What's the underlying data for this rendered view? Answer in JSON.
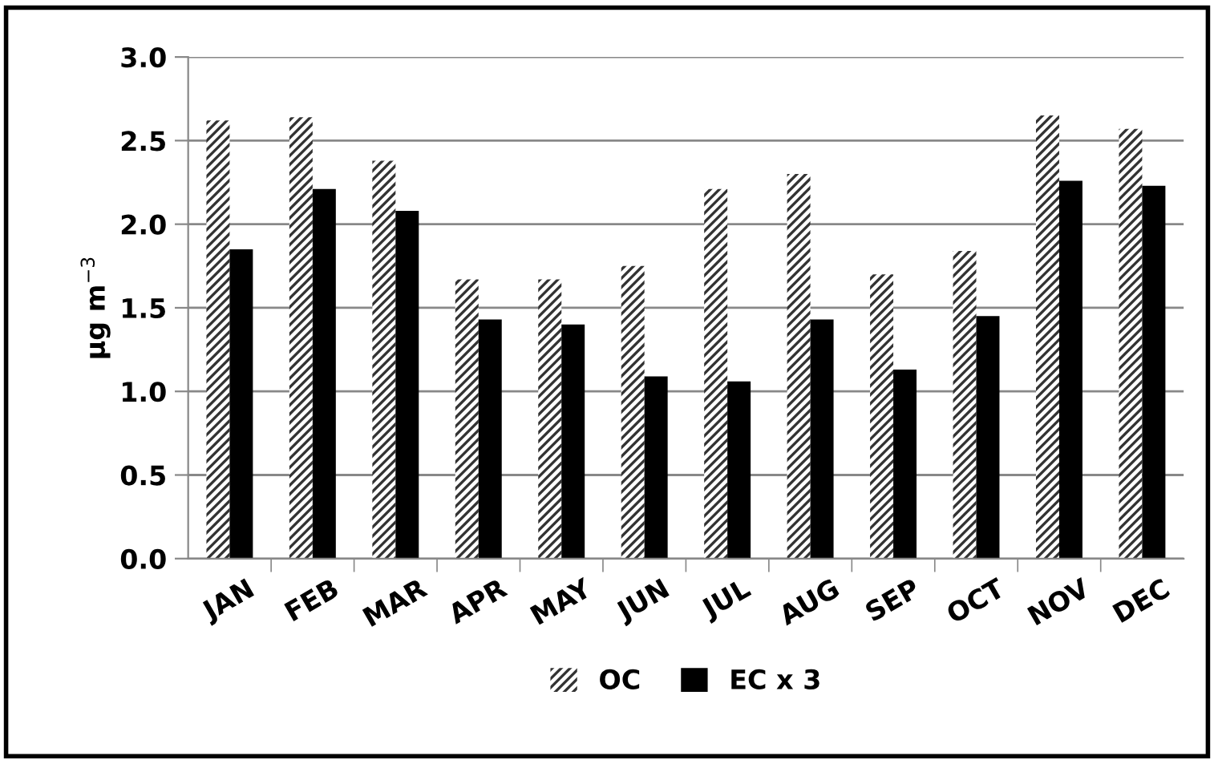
{
  "chart_data": {
    "type": "bar",
    "ylabel": "µg m$^{−3}$",
    "categories": [
      "JAN",
      "FEB",
      "MAR",
      "APR",
      "MAY",
      "JUN",
      "JUL",
      "AUG",
      "SEP",
      "OCT",
      "NOV",
      "DEC"
    ],
    "series": [
      {
        "name": "OC",
        "color": "#333333",
        "values": [
          2.62,
          2.64,
          2.38,
          1.67,
          1.67,
          1.75,
          2.21,
          2.3,
          1.7,
          1.84,
          2.65,
          2.57
        ]
      },
      {
        "name": "EC x 3",
        "color": "#000000",
        "values": [
          1.85,
          2.21,
          2.08,
          1.43,
          1.4,
          1.09,
          1.06,
          1.43,
          1.13,
          1.45,
          2.26,
          2.23
        ]
      }
    ],
    "ylim": [
      0,
      3.0
    ],
    "yticks": [
      {
        "value": 0,
        "label": "0.0"
      },
      {
        "value": 0.5,
        "label": "0.5"
      },
      {
        "value": 1.0,
        "label": "1.0"
      },
      {
        "value": 1.5,
        "label": "1.5"
      },
      {
        "value": 2.0,
        "label": "2.0"
      },
      {
        "value": 2.5,
        "label": "2.5"
      },
      {
        "value": 3.0,
        "label": "3.0"
      }
    ],
    "grid": "y",
    "legend": "bottom"
  }
}
